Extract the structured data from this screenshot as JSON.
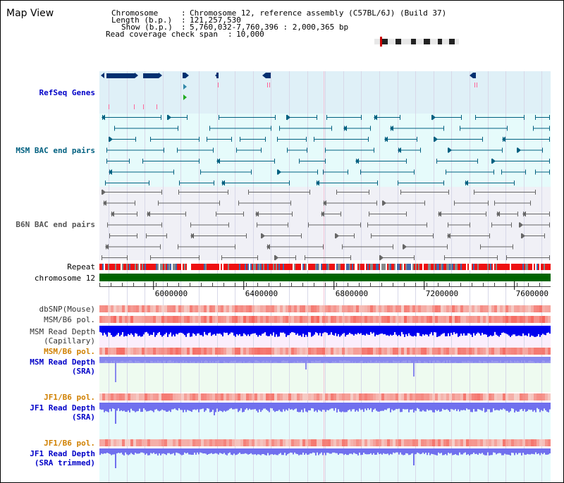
{
  "title": "Map View",
  "info": {
    "chromosome_label": "Chromosome",
    "chromosome_value": "Chromosome 12, reference assembly (C57BL/6J) (Build 37)",
    "length_label": "Length (b.p.)",
    "length_value": "121,257,530",
    "show_label": "Show (b.p.)",
    "show_value": "5,760,032-7,760,396 : 2,000,365 bp",
    "coverage_label": "Read coverage check span",
    "coverage_value": "10,000"
  },
  "tracks": {
    "refseq": "RefSeq Genes",
    "msm_bac": "MSM BAC end pairs",
    "b6n_bac": "B6N BAC end pairs",
    "repeat": "Repeat",
    "chromosome": "chromosome 12",
    "dbsnp": "dbSNP(Mouse)",
    "msm_b6_pol_1": "MSM/B6 pol.",
    "msm_read_depth_cap_1": "MSM Read Depth",
    "msm_read_depth_cap_2": "(Capillary)",
    "msm_b6_pol_2": "MSM/B6 pol.",
    "msm_read_depth_sra_1": "MSM Read Depth",
    "msm_read_depth_sra_2": "(SRA)",
    "jf1_b6_pol_1": "JF1/B6 pol.",
    "jf1_read_depth_sra_1": "JF1 Read Depth",
    "jf1_read_depth_sra_2": "(SRA)",
    "jf1_b6_pol_2": "JF1/B6 pol.",
    "jf1_read_depth_trim_1": "JF1 Read Depth",
    "jf1_read_depth_trim_2": "(SRA trimmed)"
  },
  "axis": {
    "ticks": [
      "6000000",
      "6400000",
      "6800000",
      "7200000",
      "7600000"
    ],
    "tick_values": [
      6000000,
      6400000,
      6800000,
      7200000,
      7600000
    ],
    "start": 5760032,
    "end": 7760396
  },
  "colors": {
    "refseq_bg": "#dff0f7",
    "msm_bg": "#e6fbfb",
    "b6n_bg": "#f0f0f6",
    "gene": "#003070",
    "msm_bac": "#006080",
    "b6n_bac": "#666666",
    "chromosome_bar": "#006400",
    "depth_dark": "#0000ee",
    "depth_light": "#7070ee"
  }
}
